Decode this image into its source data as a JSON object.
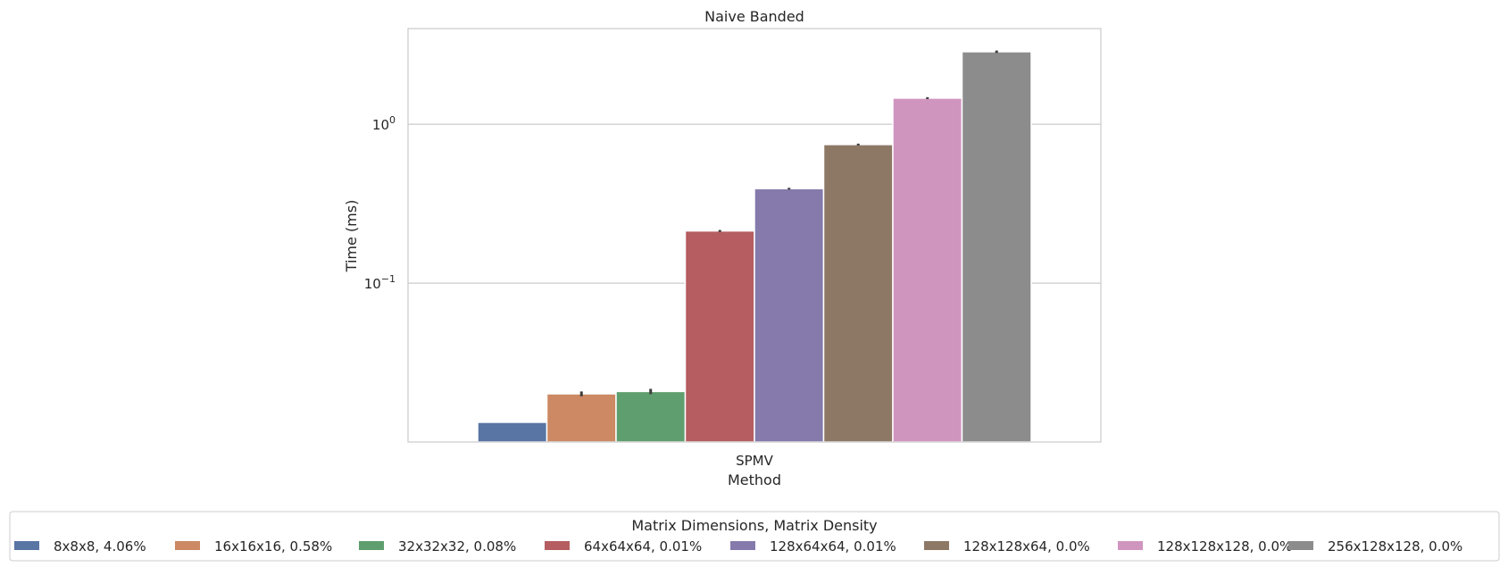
{
  "chart_data": {
    "type": "bar",
    "title": "Naive Banded",
    "xlabel": "Method",
    "ylabel": "Time (ms)",
    "yscale": "log",
    "ylim": [
      0.01,
      4.0
    ],
    "categories": [
      "SPMV"
    ],
    "yticks": [
      {
        "value": 1.0,
        "base": "10",
        "exp": "0"
      },
      {
        "value": 0.1,
        "base": "10",
        "exp": "−1"
      }
    ],
    "grid": true,
    "legend": {
      "title": "Matrix Dimensions, Matrix Density",
      "placement": "bottom"
    },
    "series": [
      {
        "name": "8x8x8, 4.06%",
        "values": [
          0.0133
        ],
        "error": [
          0.0
        ],
        "color": "#5875a4"
      },
      {
        "name": "16x16x16, 0.58%",
        "values": [
          0.0201
        ],
        "error": [
          0.0007
        ],
        "color": "#cc8963"
      },
      {
        "name": "32x32x32, 0.08%",
        "values": [
          0.0208
        ],
        "error": [
          0.0008
        ],
        "color": "#5f9e6e"
      },
      {
        "name": "64x64x64, 0.01%",
        "values": [
          0.213
        ],
        "error": [
          0.003
        ],
        "color": "#b55d60"
      },
      {
        "name": "128x64x64, 0.01%",
        "values": [
          0.393
        ],
        "error": [
          0.005
        ],
        "color": "#857aab"
      },
      {
        "name": "128x128x64, 0.0%",
        "values": [
          0.745
        ],
        "error": [
          0.01
        ],
        "color": "#8d7866"
      },
      {
        "name": "128x128x128, 0.0%",
        "values": [
          1.46
        ],
        "error": [
          0.02
        ],
        "color": "#d095bf"
      },
      {
        "name": "256x128x128, 0.0%",
        "values": [
          2.86
        ],
        "error": [
          0.05
        ],
        "color": "#8c8c8c"
      }
    ]
  }
}
